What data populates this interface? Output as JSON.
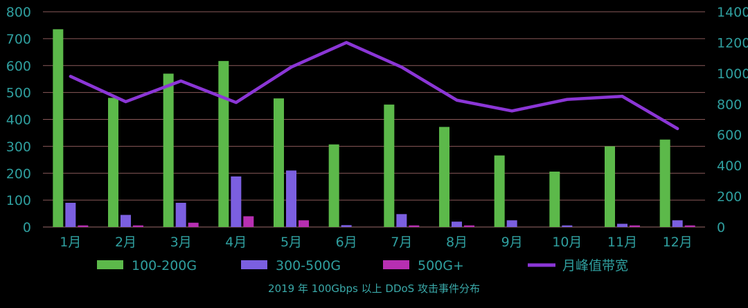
{
  "caption": "2019 年 100Gbps 以上 DDoS 攻击事件分布",
  "chart_data": {
    "type": "bar",
    "categories": [
      "1月",
      "2月",
      "3月",
      "4月",
      "5月",
      "6月",
      "7月",
      "8月",
      "9月",
      "10月",
      "11月",
      "12月"
    ],
    "series": [
      {
        "name": "100-200G",
        "kind": "bar",
        "axis": "left",
        "color": "#5cb94a",
        "values": [
          735,
          480,
          570,
          617,
          478,
          307,
          455,
          372,
          266,
          206,
          300,
          325
        ]
      },
      {
        "name": "300-500G",
        "kind": "bar",
        "axis": "left",
        "color": "#7b5fe0",
        "values": [
          90,
          45,
          90,
          188,
          210,
          7,
          48,
          20,
          25,
          6,
          12,
          25
        ]
      },
      {
        "name": "500G+",
        "kind": "bar",
        "axis": "left",
        "color": "#b72fb2",
        "values": [
          6,
          6,
          16,
          40,
          25,
          0,
          6,
          6,
          0,
          0,
          6,
          6
        ]
      },
      {
        "name": "月峰值带宽",
        "kind": "line",
        "axis": "right",
        "color": "#8b36d6",
        "values": [
          980,
          815,
          950,
          810,
          1040,
          1200,
          1040,
          825,
          755,
          830,
          850,
          640
        ]
      }
    ],
    "ylim_left": [
      0,
      800
    ],
    "yticks_left": [
      0,
      100,
      200,
      300,
      400,
      500,
      600,
      700,
      800
    ],
    "ylim_right": [
      0,
      1400
    ],
    "yticks_right": [
      0,
      200,
      400,
      600,
      800,
      1000,
      1200,
      1400
    ],
    "grid": true,
    "legend": "bottom",
    "colors": {
      "axis_text": "#2f9f9f",
      "grid": "#8a5a5a",
      "background": "#000000"
    }
  }
}
